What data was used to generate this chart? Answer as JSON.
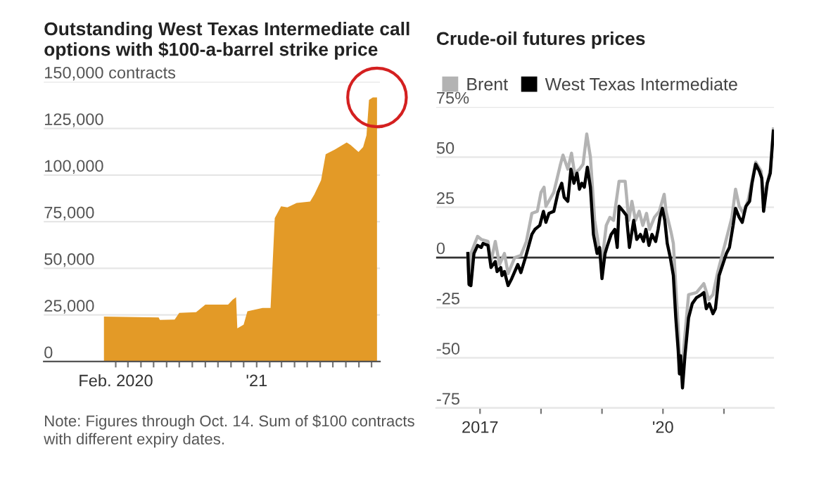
{
  "chart_data": [
    {
      "type": "area",
      "title": "Outstanding West Texas Intermediate call\noptions with $100-a-barrel strike price",
      "x": [
        "2020-01-04",
        "2020-05-13",
        "2020-05-16",
        "2020-06-20",
        "2020-07-01",
        "2020-08-10",
        "2020-09-01",
        "2020-10-25",
        "2020-11-05",
        "2020-11-13",
        "2020-11-16",
        "2020-12-01",
        "2020-12-10",
        "2021-01-15",
        "2021-02-03",
        "2021-02-13",
        "2021-02-28",
        "2021-03-15",
        "2021-04-06",
        "2021-05-08",
        "2021-05-18",
        "2021-06-03",
        "2021-06-14",
        "2021-07-06",
        "2021-08-03",
        "2021-08-12",
        "2021-08-31",
        "2021-09-11",
        "2021-09-19",
        "2021-09-25",
        "2021-10-04",
        "2021-10-14"
      ],
      "series": [
        {
          "color": "#e39a27",
          "values": [
            24100,
            23600,
            22300,
            22500,
            26100,
            26500,
            30500,
            30500,
            33200,
            34500,
            17800,
            19800,
            26900,
            28700,
            28700,
            76900,
            83200,
            82700,
            85000,
            85800,
            89600,
            97200,
            111200,
            113700,
            117500,
            116200,
            112400,
            115000,
            121300,
            140300,
            141600,
            141600
          ]
        }
      ],
      "xlim": [
        "2019-08-14",
        "2021-10-21"
      ],
      "xticks": [
        {
          "value": "2020-02-01",
          "label": "Feb. 2020"
        },
        {
          "value": "2020-03-01",
          "label": null
        },
        {
          "value": "2020-04-01",
          "label": null
        },
        {
          "value": "2020-05-01",
          "label": null
        },
        {
          "value": "2020-06-01",
          "label": null
        },
        {
          "value": "2020-07-01",
          "label": null
        },
        {
          "value": "2020-08-01",
          "label": null
        },
        {
          "value": "2020-09-01",
          "label": null
        },
        {
          "value": "2020-10-01",
          "label": null
        },
        {
          "value": "2020-11-01",
          "label": null
        },
        {
          "value": "2020-12-01",
          "label": null
        },
        {
          "value": "2021-01-01",
          "label": "'21"
        },
        {
          "value": "2021-02-01",
          "label": null
        },
        {
          "value": "2021-03-01",
          "label": null
        },
        {
          "value": "2021-04-01",
          "label": null
        },
        {
          "value": "2021-05-01",
          "label": null
        },
        {
          "value": "2021-06-01",
          "label": null
        },
        {
          "value": "2021-07-01",
          "label": null
        },
        {
          "value": "2021-08-01",
          "label": null
        },
        {
          "value": "2021-09-01",
          "label": null
        },
        {
          "value": "2021-10-01",
          "label": null
        }
      ],
      "ylim": [
        0,
        150000
      ],
      "yticks": [
        0,
        {
          "value": 25000,
          "label": "25,000"
        },
        {
          "value": 50000,
          "label": "50,000"
        },
        {
          "value": 75000,
          "label": "75,000"
        },
        {
          "value": 100000,
          "label": "100,000"
        },
        {
          "value": 125000,
          "label": "125,000"
        },
        {
          "value": 150000,
          "label": "150,000 contracts"
        }
      ],
      "grid": "y",
      "legend": false,
      "annotations": [
        "Note: Figures through Oct. 14. Sum of $100 contracts\nwith different expiry dates."
      ]
    },
    {
      "type": "line",
      "title": "Crude-oil futures prices",
      "series": [
        {
          "name": "Brent",
          "color": "#b3b3b3",
          "x": [
            2016.8,
            2016.82,
            2016.85,
            2016.96,
            2017.02,
            2017.13,
            2017.18,
            2017.25,
            2017.32,
            2017.4,
            2017.46,
            2017.57,
            2017.67,
            2017.76,
            2017.85,
            2017.94,
            2018.0,
            2018.05,
            2018.08,
            2018.21,
            2018.32,
            2018.36,
            2018.44,
            2018.5,
            2018.55,
            2018.63,
            2018.69,
            2018.75,
            2018.81,
            2018.88,
            2018.94,
            2019.0,
            2019.07,
            2019.13,
            2019.19,
            2019.28,
            2019.38,
            2019.44,
            2019.49,
            2019.55,
            2019.61,
            2019.67,
            2019.73,
            2019.78,
            2019.86,
            2019.94,
            2020.02,
            2020.05,
            2020.13,
            2020.17,
            2020.25,
            2020.27,
            2020.31,
            2020.35,
            2020.42,
            2020.55,
            2020.67,
            2020.75,
            2020.82,
            2020.9,
            2021.02,
            2021.13,
            2021.19,
            2021.25,
            2021.32,
            2021.4,
            2021.52,
            2021.61,
            2021.65,
            2021.71,
            2021.76,
            2021.81
          ],
          "values": [
            0,
            -13,
            2,
            10.5,
            9,
            8,
            -2,
            8,
            -3.5,
            2,
            -8,
            0,
            1,
            8,
            22,
            23,
            32.5,
            35,
            25.5,
            32.5,
            46.5,
            51,
            44,
            52,
            42,
            44,
            46.5,
            61.5,
            50,
            18.5,
            7,
            -2,
            16,
            20,
            18.5,
            38,
            38,
            18.5,
            28,
            18.5,
            23,
            16,
            22,
            14,
            20,
            23,
            31.5,
            23,
            13,
            7,
            -35,
            -49,
            -58,
            -42,
            -18.5,
            -17.5,
            -13,
            -21,
            -18.5,
            -7,
            7,
            20,
            34,
            25.5,
            22,
            29,
            47.5,
            43,
            30,
            37,
            44,
            64
          ]
        },
        {
          "name": "West Texas Intermediate",
          "color": "#000000",
          "x": [
            2016.8,
            2016.82,
            2016.85,
            2016.9,
            2016.96,
            2017.02,
            2017.05,
            2017.13,
            2017.18,
            2017.25,
            2017.28,
            2017.34,
            2017.36,
            2017.4,
            2017.46,
            2017.52,
            2017.57,
            2017.62,
            2017.67,
            2017.75,
            2017.85,
            2017.9,
            2017.98,
            2018.04,
            2018.08,
            2018.13,
            2018.21,
            2018.28,
            2018.34,
            2018.38,
            2018.44,
            2018.49,
            2018.54,
            2018.59,
            2018.63,
            2018.67,
            2018.71,
            2018.76,
            2018.81,
            2018.86,
            2018.92,
            2018.96,
            2019.0,
            2019.05,
            2019.09,
            2019.15,
            2019.21,
            2019.25,
            2019.28,
            2019.35,
            2019.4,
            2019.45,
            2019.52,
            2019.57,
            2019.63,
            2019.68,
            2019.72,
            2019.77,
            2019.82,
            2019.88,
            2019.92,
            2019.95,
            2019.99,
            2020.03,
            2020.07,
            2020.12,
            2020.17,
            2020.21,
            2020.25,
            2020.27,
            2020.29,
            2020.32,
            2020.36,
            2020.42,
            2020.48,
            2020.55,
            2020.63,
            2020.67,
            2020.71,
            2020.76,
            2020.82,
            2020.86,
            2020.92,
            2020.98,
            2021.04,
            2021.09,
            2021.15,
            2021.19,
            2021.25,
            2021.3,
            2021.36,
            2021.42,
            2021.46,
            2021.52,
            2021.58,
            2021.62,
            2021.65,
            2021.71,
            2021.76,
            2021.81
          ],
          "values": [
            2,
            -13.5,
            -14,
            2,
            6,
            5,
            7,
            6,
            -5,
            -2,
            -7,
            -5,
            -9,
            -7,
            -14,
            -10.5,
            -7,
            -3.5,
            -7.5,
            0.5,
            11.5,
            14,
            16,
            23,
            17.5,
            22,
            23,
            32.5,
            37,
            30,
            28,
            44,
            37,
            42,
            34,
            37,
            35,
            45,
            35,
            11.5,
            2,
            5,
            -10.5,
            2,
            6,
            11.5,
            14,
            5,
            25.5,
            23,
            21,
            5,
            18.5,
            9,
            11.5,
            8,
            14,
            6,
            11.5,
            8,
            14,
            20,
            24.5,
            18.5,
            7,
            0,
            -9,
            -30,
            -46.5,
            -58,
            -49,
            -65,
            -49,
            -30,
            -23,
            -20,
            -18.5,
            -17.5,
            -25.5,
            -23,
            -28,
            -25.5,
            -9,
            -3.5,
            2,
            5,
            16,
            24.5,
            20,
            17.5,
            25.5,
            28,
            37,
            46.5,
            43,
            39.5,
            23,
            37,
            42,
            63
          ]
        }
      ],
      "xlim": [
        2016.28,
        2021.82
      ],
      "xticks": [
        {
          "value": 2017,
          "label": "2017"
        },
        {
          "value": 2018,
          "label": null
        },
        {
          "value": 2019,
          "label": null
        },
        {
          "value": 2020,
          "label": "'20"
        },
        {
          "value": 2021,
          "label": null
        }
      ],
      "ylim": [
        -75,
        75
      ],
      "yticks": [
        {
          "value": -75,
          "label": "-75"
        },
        {
          "value": -50,
          "label": "-50"
        },
        {
          "value": -25,
          "label": "-25"
        },
        0,
        25,
        50,
        {
          "value": 75,
          "label": "75%"
        }
      ],
      "ref_lines": [
        {
          "axis": "y",
          "value": 0,
          "color": "#333333"
        }
      ],
      "grid": "y",
      "legend": "top left"
    }
  ]
}
